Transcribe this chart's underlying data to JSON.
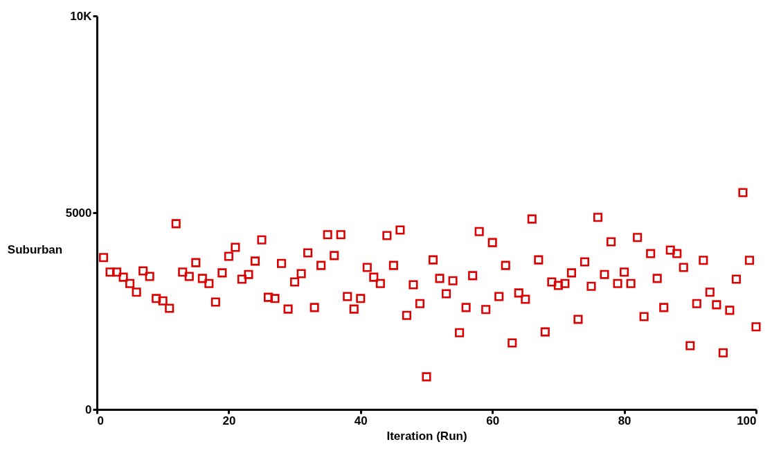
{
  "chart_data": {
    "type": "scatter",
    "xlabel": "Iteration (Run)",
    "ylabel": "Suburban",
    "x": [
      1,
      2,
      3,
      4,
      5,
      6,
      7,
      8,
      9,
      10,
      11,
      12,
      13,
      14,
      15,
      16,
      17,
      18,
      19,
      20,
      21,
      22,
      23,
      24,
      25,
      26,
      27,
      28,
      29,
      30,
      31,
      32,
      33,
      34,
      35,
      36,
      37,
      38,
      39,
      40,
      41,
      42,
      43,
      44,
      45,
      46,
      47,
      48,
      49,
      50,
      51,
      52,
      53,
      54,
      55,
      56,
      57,
      58,
      59,
      60,
      61,
      62,
      63,
      64,
      65,
      66,
      67,
      68,
      69,
      70,
      71,
      72,
      73,
      74,
      75,
      76,
      77,
      78,
      79,
      80,
      81,
      82,
      83,
      84,
      85,
      86,
      87,
      88,
      89,
      90,
      91,
      92,
      93,
      94,
      95,
      96,
      97,
      98,
      99,
      100
    ],
    "series": [
      {
        "color": "#dd0000",
        "values": [
          3860,
          3490,
          3490,
          3360,
          3200,
          2980,
          3520,
          3380,
          2820,
          2760,
          2570,
          4720,
          3490,
          3380,
          3730,
          3330,
          3200,
          2730,
          3470,
          3890,
          4120,
          3310,
          3430,
          3770,
          4310,
          2850,
          2820,
          3710,
          2550,
          3240,
          3450,
          3980,
          2590,
          3660,
          4440,
          3910,
          4440,
          2870,
          2550,
          2820,
          3610,
          3360,
          3200,
          4420,
          3660,
          4560,
          2390,
          3170,
          2690,
          830,
          3800,
          3330,
          2940,
          3270,
          1950,
          2590,
          3400,
          4520,
          2540,
          4240,
          2870,
          3660,
          1690,
          2960,
          2800,
          4840,
          3800,
          1970,
          3240,
          3150,
          3200,
          3470,
          2290,
          3750,
          3130,
          4880,
          3430,
          4260,
          3200,
          3490,
          3200,
          4370,
          2360,
          3960,
          3330,
          2590,
          4050,
          3960,
          3610,
          1620,
          2690,
          3790,
          2980,
          2660,
          1440,
          2520,
          3310,
          5510,
          3790,
          2100
        ]
      }
    ],
    "xlim": [
      0,
      100
    ],
    "xticks": [
      0,
      20,
      40,
      60,
      80,
      100
    ],
    "ylim": [
      0,
      10000
    ],
    "yticks": [
      0,
      5000,
      {
        "value": 10000,
        "label": "10K"
      }
    ],
    "marker": "square",
    "grid": false
  }
}
